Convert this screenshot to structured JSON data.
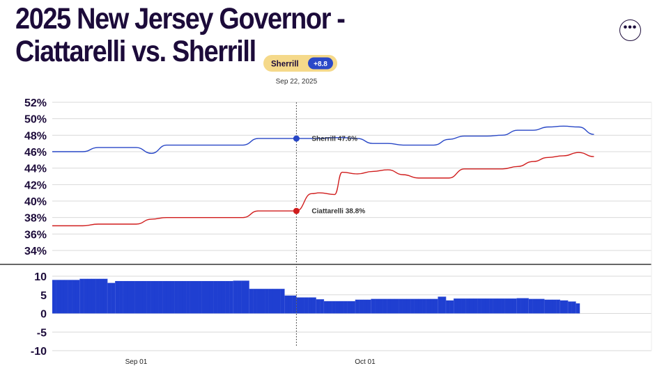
{
  "page": {
    "title": "2025 New Jersey Governor -\nCiattarelli vs. Sherrill",
    "more_icon": "more-horizontal-icon"
  },
  "hover": {
    "date": "Sep 22, 2025",
    "leader": "Sherrill",
    "spread": "+8.8",
    "labels": [
      "Sherrill 47.6%",
      "Ciattarelli 38.8%"
    ]
  },
  "colors": {
    "sherrill": "#2746c6",
    "ciattarelli": "#d01c1c",
    "spread_bar": "#1f3fd1",
    "badge_bg": "#f5d98a",
    "badge_pill": "#2b49c8",
    "title": "#1c0b3a"
  },
  "chart_data": [
    {
      "type": "line",
      "title": "",
      "xlabel": "",
      "ylabel": "",
      "y_ticks": [
        "34%",
        "36%",
        "38%",
        "40%",
        "42%",
        "44%",
        "46%",
        "48%",
        "50%",
        "52%"
      ],
      "x_ticks": [
        "Sep 01",
        "Oct 01"
      ],
      "ylim": [
        34,
        52
      ],
      "grid": true,
      "x_dates": [
        "2025-08-21",
        "2025-08-25",
        "2025-08-27",
        "2025-08-29",
        "2025-09-01",
        "2025-09-03",
        "2025-09-05",
        "2025-09-07",
        "2025-09-09",
        "2025-09-11",
        "2025-09-15",
        "2025-09-17",
        "2025-09-19",
        "2025-09-22",
        "2025-09-24",
        "2025-09-25",
        "2025-09-27",
        "2025-09-28",
        "2025-09-30",
        "2025-10-02",
        "2025-10-04",
        "2025-10-06",
        "2025-10-08",
        "2025-10-10",
        "2025-10-12",
        "2025-10-14",
        "2025-10-15",
        "2025-10-17",
        "2025-10-19",
        "2025-10-21",
        "2025-10-23",
        "2025-10-25",
        "2025-10-27",
        "2025-10-29",
        "2025-10-31"
      ],
      "series": [
        {
          "name": "Sherrill",
          "values": [
            46.0,
            46.0,
            46.5,
            46.5,
            46.5,
            45.8,
            46.8,
            46.8,
            46.8,
            46.8,
            46.8,
            47.6,
            47.6,
            47.6,
            47.6,
            47.6,
            47.7,
            47.7,
            47.6,
            47.0,
            47.0,
            46.8,
            46.8,
            46.8,
            47.5,
            47.9,
            47.9,
            47.9,
            48.0,
            48.6,
            48.6,
            49.0,
            49.1,
            49.0,
            48.1
          ]
        },
        {
          "name": "Ciattarelli",
          "values": [
            37.0,
            37.0,
            37.2,
            37.2,
            37.2,
            37.8,
            38.0,
            38.0,
            38.0,
            38.0,
            38.0,
            38.8,
            38.8,
            38.8,
            40.9,
            41.0,
            40.8,
            43.5,
            43.3,
            43.6,
            43.8,
            43.2,
            42.8,
            42.8,
            42.8,
            43.9,
            43.9,
            43.9,
            43.9,
            44.2,
            44.8,
            45.3,
            45.5,
            45.9,
            45.4
          ]
        }
      ]
    },
    {
      "type": "bar",
      "title": "",
      "xlabel": "",
      "ylabel": "",
      "y_ticks": [
        "-10",
        "-5",
        "0",
        "5",
        "10"
      ],
      "ylim": [
        -10,
        10
      ],
      "values": [
        9.0,
        9.0,
        9.0,
        9.0,
        9.0,
        9.0,
        9.0,
        9.3,
        9.3,
        9.3,
        9.3,
        9.3,
        9.3,
        9.3,
        8.2,
        8.2,
        8.7,
        8.7,
        8.7,
        8.7,
        8.7,
        8.7,
        8.7,
        8.7,
        8.7,
        8.7,
        8.7,
        8.7,
        8.7,
        8.7,
        8.7,
        8.7,
        8.7,
        8.7,
        8.7,
        8.7,
        8.7,
        8.7,
        8.7,
        8.7,
        8.7,
        8.7,
        8.7,
        8.7,
        8.7,
        8.7,
        8.8,
        8.8,
        8.8,
        8.8,
        6.6,
        6.6,
        6.6,
        6.6,
        6.6,
        6.6,
        6.6,
        6.6,
        6.6,
        4.8,
        4.8,
        4.8,
        4.3,
        4.3,
        4.3,
        4.3,
        4.3,
        3.8,
        3.8,
        3.3,
        3.3,
        3.3,
        3.3,
        3.3,
        3.3,
        3.3,
        3.3,
        3.7,
        3.7,
        3.7,
        3.7,
        3.9,
        3.9,
        3.9,
        3.9,
        3.9,
        3.9,
        3.9,
        3.9,
        3.9,
        3.9,
        3.9,
        3.9,
        3.9,
        3.9,
        3.9,
        3.9,
        3.9,
        4.5,
        4.5,
        3.5,
        3.5,
        4.0,
        4.0,
        4.0,
        4.0,
        4.0,
        4.0,
        4.0,
        4.0,
        4.0,
        4.0,
        4.0,
        4.0,
        4.0,
        4.0,
        4.0,
        4.0,
        4.1,
        4.1,
        4.1,
        3.9,
        3.9,
        3.9,
        3.9,
        3.7,
        3.7,
        3.7,
        3.7,
        3.5,
        3.5,
        3.2,
        3.2,
        2.7
      ]
    }
  ]
}
